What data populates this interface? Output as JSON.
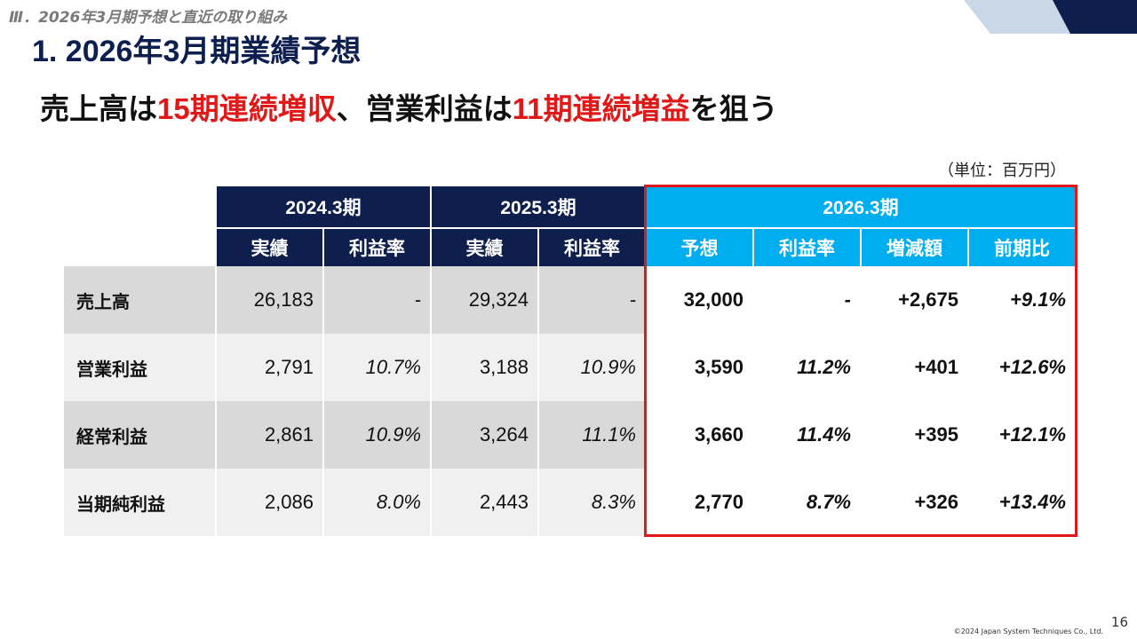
{
  "header": {
    "section": "Ⅲ．2026年3月期予想と直近の取り組み",
    "title": "1. 2026年3月期業績予想"
  },
  "headline": {
    "part1": "売上高は",
    "highlight1": "15期連続増収",
    "part2": "、営業利益は",
    "highlight2": "11期連続増益",
    "part3": "を狙う"
  },
  "unit": "（単位：百万円）",
  "table": {
    "periods": [
      "2024.3期",
      "2025.3期",
      "2026.3期"
    ],
    "subheaders": [
      "実績",
      "利益率",
      "実績",
      "利益率",
      "予想",
      "利益率",
      "増減額",
      "前期比"
    ],
    "rows": [
      {
        "label": "売上高",
        "values": [
          "26,183",
          "-",
          "29,324",
          "-",
          "32,000",
          "-",
          "+2,675",
          "+9.1%"
        ]
      },
      {
        "label": "営業利益",
        "values": [
          "2,791",
          "10.7%",
          "3,188",
          "10.9%",
          "3,590",
          "11.2%",
          "+401",
          "+12.6%"
        ]
      },
      {
        "label": "経常利益",
        "values": [
          "2,861",
          "10.9%",
          "3,264",
          "11.1%",
          "3,660",
          "11.4%",
          "+395",
          "+12.1%"
        ]
      },
      {
        "label": "当期純利益",
        "values": [
          "2,086",
          "8.0%",
          "2,443",
          "8.3%",
          "2,770",
          "8.7%",
          "+326",
          "+13.4%"
        ]
      }
    ]
  },
  "footer": {
    "copyright": "©2024 Japan System Techniques Co., Ltd.",
    "page_number": "16"
  },
  "colors": {
    "navy": "#0e1f4d",
    "accent_blue": "#00aeef",
    "highlight_red": "#e01818"
  }
}
